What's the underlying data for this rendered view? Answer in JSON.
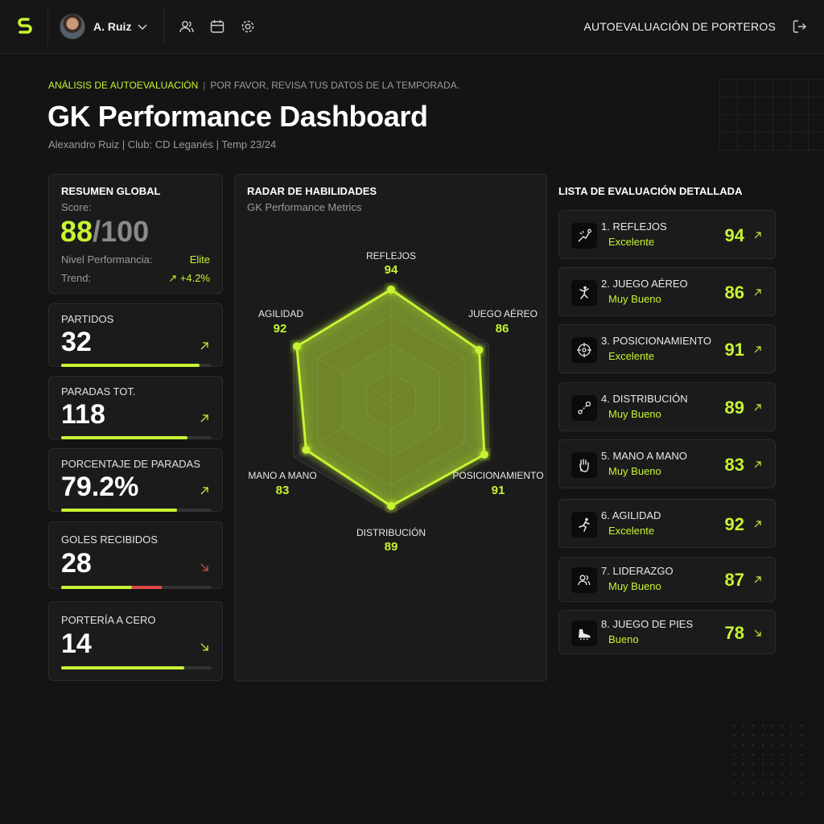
{
  "header": {
    "user_name": "A. Ruiz",
    "app_title": "AUTOEVALUACIÓN DE PORTEROS"
  },
  "page": {
    "kicker_accent": "ANÁLISIS DE AUTOEVALUACIÓN",
    "kicker_sep": "|",
    "kicker_rest": "POR FAVOR, REVISA TUS DATOS DE LA TEMPORADA.",
    "title": "GK Performance Dashboard",
    "subtitle": "Alexandro Ruiz | Club: CD Leganés | Temp 23/24"
  },
  "summary": {
    "title": "RESUMEN GLOBAL",
    "score_label": "Score:",
    "score": "88",
    "score_max": "/100",
    "level_label": "Nivel Performancia:",
    "level_value": "Elite",
    "trend_label": "Trend:",
    "trend_value": "↗ +4.2%"
  },
  "stats": [
    {
      "label": "PARTIDOS",
      "value": "32",
      "progress": 0.92,
      "trend": "up"
    },
    {
      "label": "PARADAS TOT.",
      "value": "118",
      "progress": 0.84,
      "trend": "up"
    },
    {
      "label": "PORCENTAJE DE PARADAS",
      "value": "79.2%",
      "progress": 0.77,
      "trend": "up"
    },
    {
      "label": "GOLES RECIBIDOS",
      "value": "28",
      "progress": 0.47,
      "red_progress": 0.2,
      "trend": "down"
    },
    {
      "label": "PORTERÍA A CERO",
      "value": "14",
      "progress": 0.82,
      "trend": "down"
    }
  ],
  "radar": {
    "title": "RADAR DE HABILIDADES",
    "subtitle": "GK Performance Metrics"
  },
  "chart_data": {
    "type": "radar",
    "title": "RADAR DE HABILIDADES",
    "subtitle": "GK Performance Metrics",
    "categories": [
      "REFLEJOS",
      "JUEGO AÉREO",
      "POSICIONAMIENTO",
      "DISTRIBUCIÓN",
      "MANO A MANO",
      "AGILIDAD"
    ],
    "values": [
      94,
      86,
      91,
      89,
      83,
      92
    ],
    "value_labels": [
      "94",
      "86",
      "91",
      "89",
      "83",
      "92"
    ],
    "range": [
      0,
      100
    ],
    "rings": 4,
    "color": "#c6f432"
  },
  "list": {
    "title": "LISTA DE EVALUACIÓN DETALLADA",
    "items": [
      {
        "name": "1. REFLEJOS",
        "grade": "Excelente",
        "score": "94",
        "icon": "goalkeeper-dive-icon",
        "trend": "up"
      },
      {
        "name": "2. JUEGO AÉREO",
        "grade": "Muy Bueno",
        "score": "86",
        "icon": "jumping-player-icon",
        "trend": "up"
      },
      {
        "name": "3. POSICIONAMIENTO",
        "grade": "Excelente",
        "score": "91",
        "icon": "crosshair-icon",
        "trend": "up"
      },
      {
        "name": "4. DISTRIBUCIÓN",
        "grade": "Muy Bueno",
        "score": "89",
        "icon": "pass-nodes-icon",
        "trend": "up"
      },
      {
        "name": "5. MANO A MANO",
        "grade": "Muy Bueno",
        "score": "83",
        "icon": "glove-hand-icon",
        "trend": "up"
      },
      {
        "name": "6. AGILIDAD",
        "grade": "Excelente",
        "score": "92",
        "icon": "running-player-icon",
        "trend": "up"
      },
      {
        "name": "7. LIDERAZGO",
        "grade": "Muy Bueno",
        "score": "87",
        "icon": "team-users-icon",
        "trend": "up"
      },
      {
        "name": "8. JUEGO DE PIES",
        "grade": "Bueno",
        "score": "78",
        "icon": "football-boot-icon",
        "trend": "down"
      }
    ]
  },
  "colors": {
    "accent": "#c6f432",
    "negative": "#e04848",
    "background": "#141414",
    "card": "#1b1b1b"
  }
}
